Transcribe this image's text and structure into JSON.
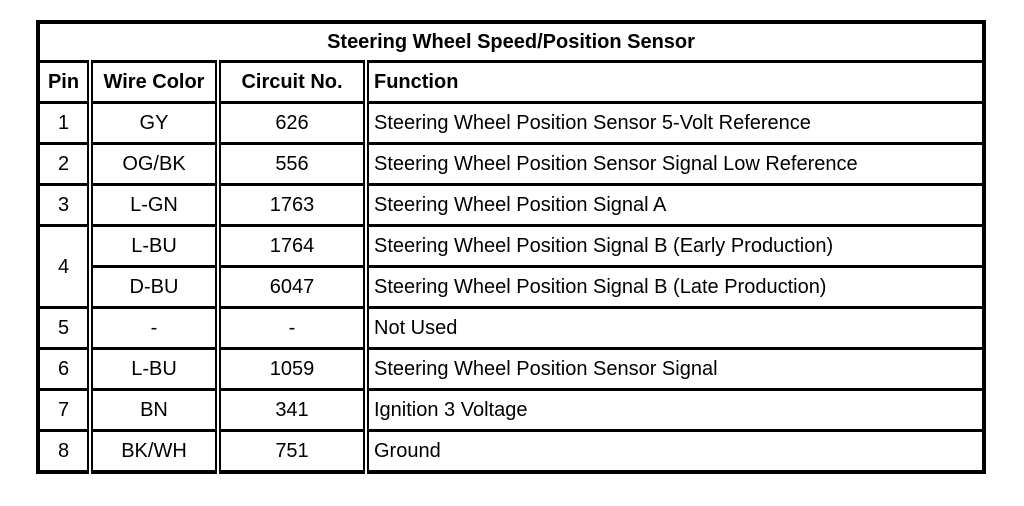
{
  "colors": {
    "background": "#ffffff",
    "border": "#000000",
    "text": "#000000"
  },
  "table": {
    "title": "Steering Wheel Speed/Position Sensor",
    "columns": [
      "Pin",
      "Wire Color",
      "Circuit No.",
      "Function"
    ],
    "rows": [
      {
        "pin": "1",
        "wire": "GY",
        "circuit": "626",
        "function": "Steering Wheel Position Sensor 5-Volt Reference"
      },
      {
        "pin": "2",
        "wire": "OG/BK",
        "circuit": "556",
        "function": "Steering Wheel Position Sensor Signal Low Reference"
      },
      {
        "pin": "3",
        "wire": "L-GN",
        "circuit": "1763",
        "function": "Steering Wheel Position Signal A"
      },
      {
        "pin": "4",
        "rowspan": 2,
        "wire": "L-BU",
        "circuit": "1764",
        "function": "Steering Wheel Position Signal B (Early Production)"
      },
      {
        "pin": null,
        "wire": "D-BU",
        "circuit": "6047",
        "function": "Steering Wheel Position Signal B (Late Production)"
      },
      {
        "pin": "5",
        "wire": "-",
        "circuit": "-",
        "function": "Not Used"
      },
      {
        "pin": "6",
        "wire": "L-BU",
        "circuit": "1059",
        "function": "Steering Wheel Position Sensor Signal"
      },
      {
        "pin": "7",
        "wire": "BN",
        "circuit": "341",
        "function": "Ignition 3 Voltage"
      },
      {
        "pin": "8",
        "wire": "BK/WH",
        "circuit": "751",
        "function": "Ground"
      }
    ]
  }
}
